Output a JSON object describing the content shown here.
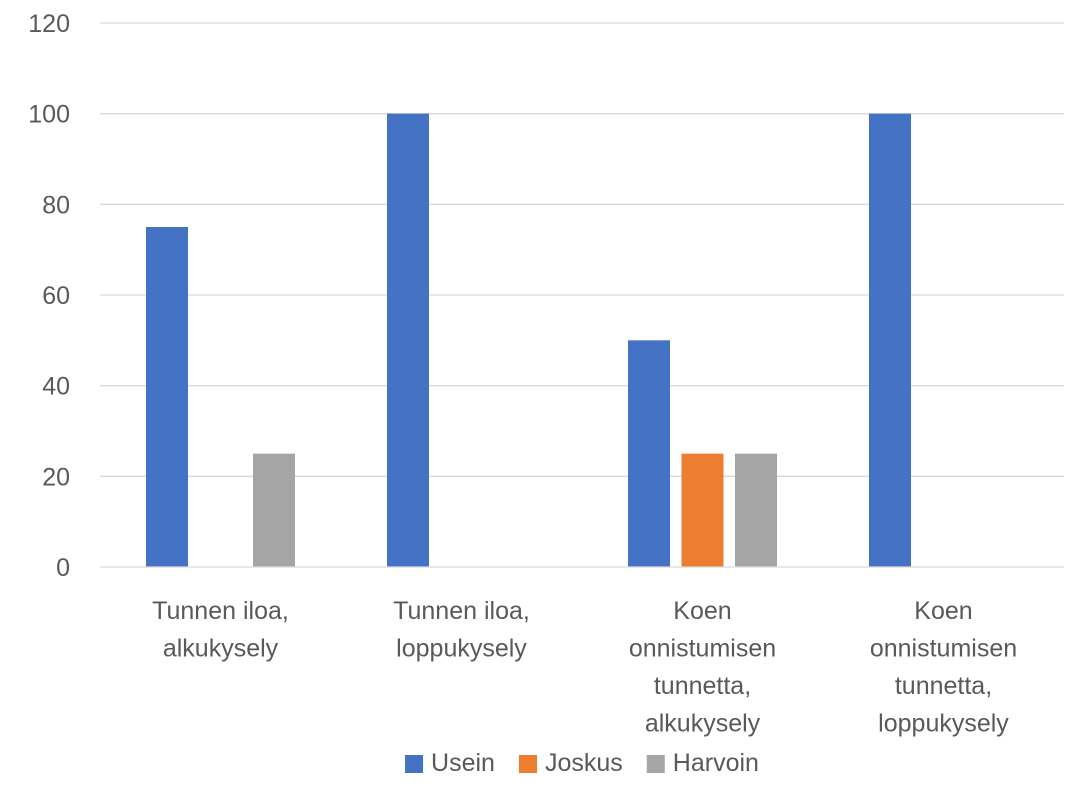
{
  "chart_data": {
    "type": "bar",
    "categories": [
      [
        "Tunnen iloa,",
        "alkukysely"
      ],
      [
        "Tunnen iloa,",
        "loppukysely"
      ],
      [
        "Koen",
        "onnistumisen",
        "tunnetta,",
        "alkukysely"
      ],
      [
        "Koen",
        "onnistumisen",
        "tunnetta,",
        "loppukysely"
      ]
    ],
    "series": [
      {
        "name": "Usein",
        "color": "#4472c4",
        "values": [
          75,
          100,
          50,
          100
        ]
      },
      {
        "name": "Joskus",
        "color": "#ed7d31",
        "values": [
          0,
          0,
          25,
          0
        ]
      },
      {
        "name": "Harvoin",
        "color": "#a5a5a5",
        "values": [
          25,
          0,
          25,
          0
        ]
      }
    ],
    "ylim": [
      0,
      120
    ],
    "yticks": [
      0,
      20,
      40,
      60,
      80,
      100,
      120
    ],
    "grid": true,
    "legend_position": "bottom",
    "title": "",
    "xlabel": "",
    "ylabel": ""
  }
}
